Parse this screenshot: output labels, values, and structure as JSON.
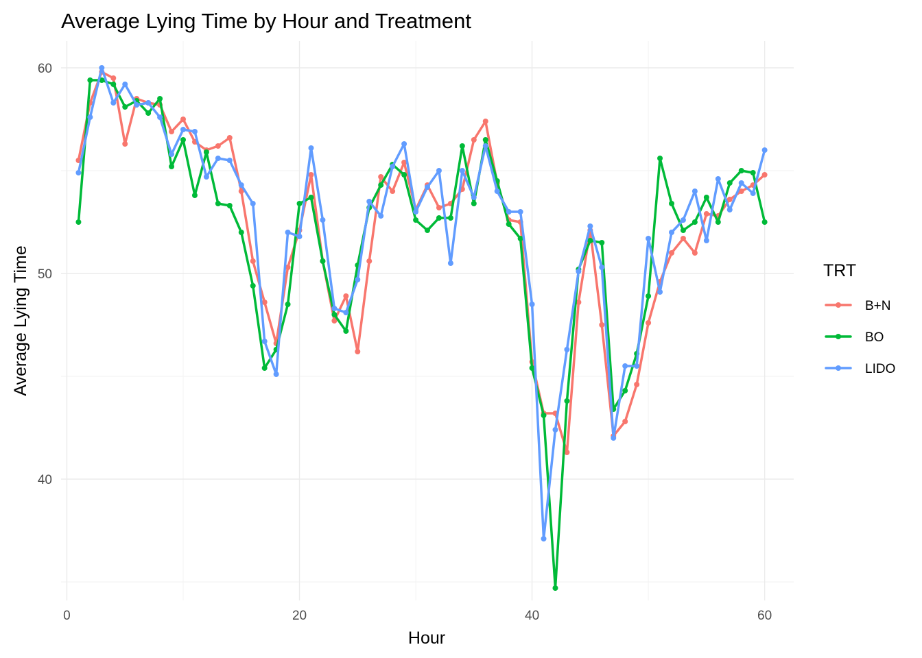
{
  "chart_data": {
    "type": "line",
    "title": "Average Lying Time by Hour and Treatment",
    "xlabel": "Hour",
    "ylabel": "Average Lying Time",
    "xlim": [
      -0.5,
      62.5
    ],
    "ylim": [
      34.1,
      61.3
    ],
    "x_ticks": [
      0,
      20,
      40,
      60
    ],
    "y_ticks": [
      40,
      50,
      60
    ],
    "x_minor": [
      10,
      30,
      50
    ],
    "y_minor": [
      35,
      45,
      55
    ],
    "legend_title": "TRT",
    "legend_position": "right",
    "grid": true,
    "x": [
      1,
      2,
      3,
      4,
      5,
      6,
      7,
      8,
      9,
      10,
      11,
      12,
      13,
      14,
      15,
      16,
      17,
      18,
      19,
      20,
      21,
      22,
      23,
      24,
      25,
      26,
      27,
      28,
      29,
      30,
      31,
      32,
      33,
      34,
      35,
      36,
      37,
      38,
      39,
      40,
      41,
      42,
      43,
      44,
      45,
      46,
      47,
      48,
      49,
      50,
      51,
      52,
      53,
      54,
      55,
      56,
      57,
      58,
      59,
      60
    ],
    "series": [
      {
        "name": "B+N",
        "color": "#F8766D",
        "values": [
          55.5,
          58.3,
          59.8,
          59.5,
          56.3,
          58.5,
          58.3,
          58.2,
          56.9,
          57.5,
          56.4,
          56.0,
          56.2,
          56.6,
          54.0,
          50.6,
          48.6,
          46.6,
          50.3,
          52.1,
          54.8,
          50.6,
          47.7,
          48.9,
          46.2,
          50.6,
          54.7,
          54.0,
          55.4,
          53.1,
          54.3,
          53.2,
          53.4,
          54.1,
          56.5,
          57.4,
          54.4,
          52.6,
          52.5,
          45.7,
          43.2,
          43.2,
          41.3,
          48.6,
          52.1,
          47.5,
          42.1,
          42.8,
          44.6,
          47.6,
          49.6,
          51.0,
          51.7,
          51.0,
          52.9,
          52.8,
          53.6,
          54.0,
          54.3,
          54.8
        ]
      },
      {
        "name": "BO",
        "color": "#00BA38",
        "values": [
          52.5,
          59.4,
          59.4,
          59.2,
          58.1,
          58.4,
          57.8,
          58.5,
          55.2,
          56.5,
          53.8,
          55.9,
          53.4,
          53.3,
          52.0,
          49.4,
          45.4,
          46.3,
          48.5,
          53.4,
          53.7,
          50.6,
          48.0,
          47.2,
          50.4,
          53.2,
          54.3,
          55.3,
          54.8,
          52.6,
          52.1,
          52.7,
          52.7,
          56.2,
          53.4,
          56.5,
          54.5,
          52.4,
          51.7,
          45.4,
          43.1,
          34.7,
          43.8,
          50.2,
          51.6,
          51.5,
          43.4,
          44.3,
          46.1,
          48.9,
          55.6,
          53.4,
          52.1,
          52.5,
          53.7,
          52.5,
          54.4,
          55.0,
          54.9,
          52.5
        ]
      },
      {
        "name": "LIDO",
        "color": "#619CFF",
        "values": [
          54.9,
          57.6,
          60.0,
          58.3,
          59.2,
          58.2,
          58.3,
          57.6,
          55.8,
          57.0,
          56.9,
          54.7,
          55.6,
          55.5,
          54.3,
          53.4,
          46.7,
          45.1,
          52.0,
          51.8,
          56.1,
          52.6,
          48.3,
          48.1,
          49.7,
          53.5,
          52.8,
          55.2,
          56.3,
          53.0,
          54.2,
          55.0,
          50.5,
          55.0,
          53.7,
          56.2,
          54.0,
          53.0,
          53.0,
          48.5,
          37.1,
          42.4,
          46.3,
          50.1,
          52.3,
          50.3,
          42.0,
          45.5,
          45.5,
          51.7,
          49.1,
          52.0,
          52.6,
          54.0,
          51.6,
          54.6,
          53.1,
          54.4,
          53.9,
          56.0
        ]
      }
    ]
  }
}
